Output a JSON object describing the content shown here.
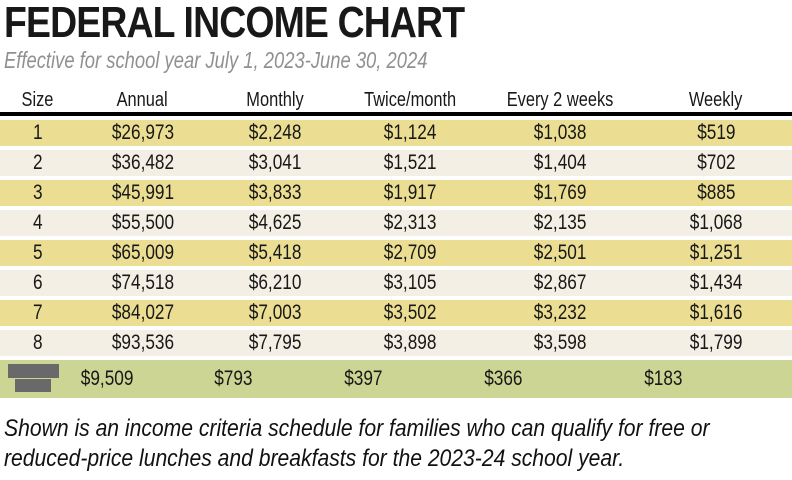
{
  "header": {
    "title": "FEDERAL INCOME CHART",
    "subtitle": "Effective for school year July 1, 2023-June 30, 2024"
  },
  "chart_data": {
    "type": "table",
    "title": "FEDERAL INCOME CHART",
    "columns": [
      "Size",
      "Annual",
      "Monthly",
      "Twice/month",
      "Every 2 weeks",
      "Weekly"
    ],
    "rows": [
      {
        "size": "1",
        "values": [
          "$26,973",
          "$2,248",
          "$1,124",
          "$1,038",
          "$519"
        ]
      },
      {
        "size": "2",
        "values": [
          "$36,482",
          "$3,041",
          "$1,521",
          "$1,404",
          "$702"
        ]
      },
      {
        "size": "3",
        "values": [
          "$45,991",
          "$3,833",
          "$1,917",
          "$1,769",
          "$885"
        ]
      },
      {
        "size": "4",
        "values": [
          "$55,500",
          "$4,625",
          "$2,313",
          "$2,135",
          "$1,068"
        ]
      },
      {
        "size": "5",
        "values": [
          "$65,009",
          "$5,418",
          "$2,709",
          "$2,501",
          "$1,251"
        ]
      },
      {
        "size": "6",
        "values": [
          "$74,518",
          "$6,210",
          "$3,105",
          "$2,867",
          "$1,434"
        ]
      },
      {
        "size": "7",
        "values": [
          "$84,027",
          "$7,003",
          "$3,502",
          "$3,232",
          "$1,616"
        ]
      },
      {
        "size": "8",
        "values": [
          "$93,536",
          "$7,795",
          "$3,898",
          "$3,598",
          "$1,799"
        ]
      }
    ],
    "extra_row": {
      "icon": "redacted-bars-icon",
      "values": [
        "$9,509",
        "$793",
        "$397",
        "$366",
        "$183"
      ]
    }
  },
  "caption": "Shown is an income criteria schedule for families who can qualify for free or reduced-price lunches and breakfasts for the 2023-24 school year.",
  "colors": {
    "row_yellow": "#ebde92",
    "row_cream": "#f4efe4",
    "row_green": "#ccd593",
    "icon_gray": "#696969",
    "subtitle_gray": "#909090",
    "text_black": "#181818",
    "header_rule": "#000000"
  }
}
